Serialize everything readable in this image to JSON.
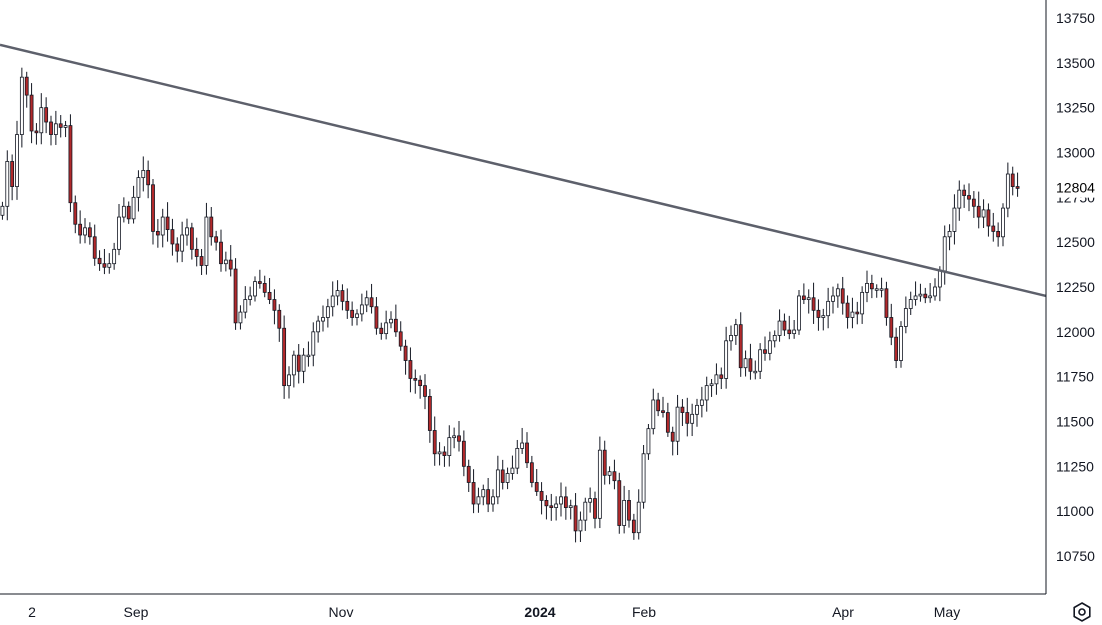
{
  "chart_data": {
    "type": "candlestick",
    "y_axis": {
      "ticks": [
        13750,
        13500,
        13250,
        13000,
        12750,
        12500,
        12250,
        12000,
        11750,
        11500,
        11250,
        11000,
        10750
      ],
      "range": [
        10650,
        13850
      ]
    },
    "x_axis": {
      "labels": [
        "2",
        "Sep",
        "Nov",
        "2024",
        "Feb",
        "Apr",
        "May"
      ],
      "bold_labels": [
        "2024"
      ]
    },
    "last_price": "12804",
    "trendline": {
      "from": 13600,
      "to": 12200
    },
    "closes": [
      12700,
      12950,
      12810,
      13100,
      13420,
      13320,
      13120,
      13110,
      13250,
      13170,
      13100,
      13160,
      13140,
      13150,
      12720,
      12600,
      12540,
      12580,
      12530,
      12410,
      12380,
      12360,
      12380,
      12460,
      12640,
      12700,
      12630,
      12750,
      12860,
      12900,
      12820,
      12560,
      12540,
      12640,
      12570,
      12490,
      12450,
      12540,
      12580,
      12460,
      12420,
      12370,
      12640,
      12530,
      12500,
      12380,
      12400,
      12350,
      12050,
      12110,
      12180,
      12200,
      12280,
      12270,
      12220,
      12180,
      12120,
      12020,
      11700,
      11760,
      11870,
      11780,
      11870,
      11870,
      12000,
      12060,
      12080,
      12140,
      12200,
      12230,
      12170,
      12120,
      12080,
      12100,
      12150,
      12190,
      12140,
      12020,
      11990,
      12050,
      12070,
      12000,
      11920,
      11840,
      11740,
      11730,
      11700,
      11640,
      11450,
      11320,
      11330,
      11310,
      11410,
      11420,
      11390,
      11250,
      11160,
      11040,
      11080,
      11120,
      11040,
      11080,
      11230,
      11160,
      11210,
      11240,
      11350,
      11380,
      11270,
      11160,
      11110,
      11060,
      11030,
      11020,
      11040,
      11080,
      11020,
      11030,
      10890,
      10950,
      11050,
      11070,
      10960,
      11340,
      11200,
      11220,
      11170,
      10920,
      11060,
      10950,
      10880,
      11050,
      11320,
      11460,
      11620,
      11560,
      11550,
      11440,
      11390,
      11580,
      11550,
      11490,
      11540,
      11590,
      11620,
      11700,
      11710,
      11760,
      11740,
      11950,
      11980,
      12040,
      11800,
      11850,
      11780,
      11780,
      11900,
      11880,
      11950,
      11980,
      12060,
      12010,
      11990,
      12010,
      12200,
      12180,
      12190,
      12120,
      12080,
      12090,
      12170,
      12200,
      12240,
      12160,
      12080,
      12110,
      12100,
      12220,
      12270,
      12240,
      12240,
      12240,
      12080,
      11970,
      11840,
      12030,
      12130,
      12180,
      12200,
      12210,
      12190,
      12200,
      12250,
      12340,
      12530,
      12560,
      12690,
      12790,
      12760,
      12740,
      12700,
      12640,
      12680,
      12590,
      12560,
      12530,
      12690,
      12880,
      12810,
      12800
    ],
    "series_colors": {
      "up": "#ffffff",
      "down": "#b2292b",
      "wick": "#131722",
      "trendline": "#5d606b"
    },
    "settings_icon": "settings-hexagon-icon"
  }
}
